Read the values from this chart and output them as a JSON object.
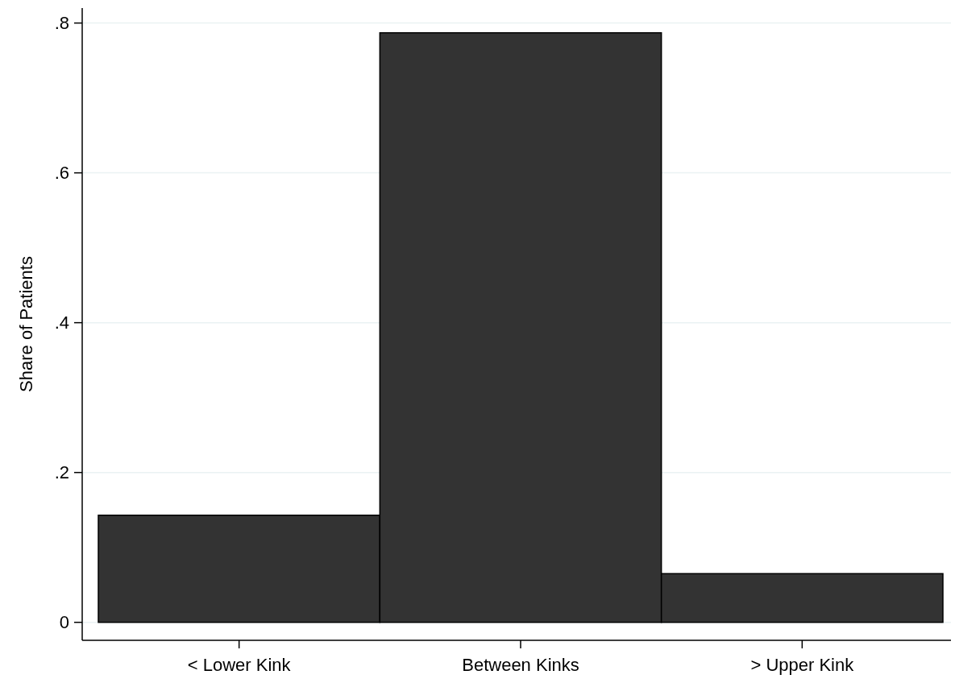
{
  "chart_data": {
    "type": "bar",
    "ylabel": "Share of Patients",
    "categories": [
      "< Lower Kink",
      "Between Kinks",
      "> Upper Kink"
    ],
    "values": [
      0.143,
      0.787,
      0.065
    ],
    "color": "#333333",
    "ylim": [
      -0.024,
      0.82
    ],
    "yticks": [
      {
        "value": 0,
        "label": "0"
      },
      {
        "value": 0.2,
        "label": ".2"
      },
      {
        "value": 0.4,
        "label": ".4"
      },
      {
        "value": 0.6,
        "label": ".6"
      },
      {
        "value": 0.8,
        "label": ".8"
      }
    ],
    "grid": "y"
  }
}
